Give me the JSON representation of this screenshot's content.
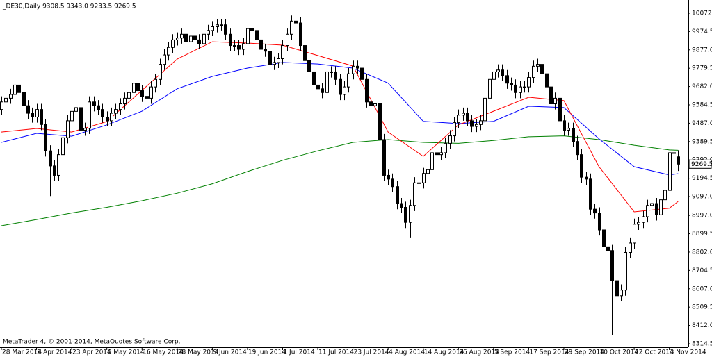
{
  "chart_data": {
    "type": "candlestick",
    "title": "_DE30,Daily  9308.5 9343.0 9233.5 9269.5",
    "footer": "MetaTrader 4, © 2001-2014, MetaQuotes Software Corp.",
    "last_price": 9269.5,
    "ylim": [
      8296,
      10142
    ],
    "yticks": [
      {
        "value": 10072,
        "label": "10072.0"
      },
      9974.5,
      {
        "value": 9877,
        "label": "9877.0"
      },
      9779.5,
      {
        "value": 9682,
        "label": "9682.0"
      },
      9584.5,
      {
        "value": 9487,
        "label": "9487.0"
      },
      9389.5,
      {
        "value": 9292,
        "label": "9292.0"
      },
      9194.5,
      {
        "value": 9097,
        "label": "9097.0"
      },
      {
        "value": 8997,
        "label": "8997.0"
      },
      8899.5,
      {
        "value": 8802,
        "label": "8802.0"
      },
      8704.5,
      {
        "value": 8607,
        "label": "8607.0"
      },
      8509.5,
      {
        "value": 8412,
        "label": "8412.0"
      },
      8314.5
    ],
    "categories": [
      "28 Mar 2014",
      null,
      null,
      null,
      null,
      null,
      null,
      null,
      "9 Apr 2014",
      null,
      null,
      null,
      null,
      null,
      null,
      null,
      "23 Apr 2014",
      null,
      null,
      null,
      null,
      null,
      null,
      null,
      "6 May 2014",
      null,
      null,
      null,
      null,
      null,
      null,
      null,
      "16 May 2014",
      null,
      null,
      null,
      null,
      null,
      null,
      null,
      "28 May 2014",
      null,
      null,
      null,
      null,
      null,
      null,
      null,
      "9 Jun 2014",
      null,
      null,
      null,
      null,
      null,
      null,
      null,
      "19 Jun 2014",
      null,
      null,
      null,
      null,
      null,
      null,
      null,
      "1 Jul 2014",
      null,
      null,
      null,
      null,
      null,
      null,
      null,
      "11 Jul 2014",
      null,
      null,
      null,
      null,
      null,
      null,
      null,
      "23 Jul 2014",
      null,
      null,
      null,
      null,
      null,
      null,
      null,
      "4 Aug 2014",
      null,
      null,
      null,
      null,
      null,
      null,
      null,
      "14 Aug 2014",
      null,
      null,
      null,
      null,
      null,
      null,
      null,
      "26 Aug 2014",
      null,
      null,
      null,
      null,
      null,
      null,
      null,
      "5 Sep 2014",
      null,
      null,
      null,
      null,
      null,
      null,
      null,
      "17 Sep 2014",
      null,
      null,
      null,
      null,
      null,
      null,
      null,
      "29 Sep 2014",
      null,
      null,
      null,
      null,
      null,
      null,
      null,
      "10 Oct 2014",
      null,
      null,
      null,
      null,
      null,
      null,
      null,
      "22 Oct 2014",
      null,
      null,
      null,
      null,
      null,
      null,
      null,
      "3 Nov 2014",
      null,
      null
    ],
    "open": [
      9560,
      9600,
      9620,
      9640,
      9690,
      9650,
      9580,
      9540,
      9520,
      9560,
      9480,
      9340,
      9260,
      9210,
      9320,
      9410,
      9500,
      9550,
      9570,
      9450,
      9460,
      9600,
      9580,
      9560,
      9520,
      9500,
      9540,
      9560,
      9590,
      9620,
      9650,
      9700,
      9660,
      9630,
      9620,
      9680,
      9720,
      9800,
      9850,
      9890,
      9930,
      9940,
      9960,
      9920,
      9950,
      9930,
      9910,
      9960,
      9980,
      10000,
      10010,
      10010,
      9960,
      9900,
      9900,
      9880,
      9910,
      9990,
      9980,
      9930,
      9880,
      9870,
      9800,
      9810,
      9830,
      9900,
      9960,
      10030,
      10020,
      9900,
      9820,
      9760,
      9690,
      9670,
      9650,
      9760,
      9760,
      9720,
      9640,
      9680,
      9750,
      9790,
      9780,
      9720,
      9600,
      9580,
      9590,
      9400,
      9210,
      9190,
      9150,
      9060,
      9040,
      8960,
      9050,
      9170,
      9170,
      9220,
      9240,
      9330,
      9320,
      9330,
      9380,
      9420,
      9490,
      9530,
      9540,
      9500,
      9470,
      9480,
      9500,
      9620,
      9720,
      9760,
      9770,
      9740,
      9700,
      9690,
      9650,
      9680,
      9680,
      9730,
      9790,
      9800,
      9750,
      9680,
      9590,
      9620,
      9500,
      9450,
      9460,
      9390,
      9320,
      9200,
      9190,
      9030,
      9010,
      8920,
      8830,
      8810,
      8650,
      8570,
      8600,
      8800,
      8850,
      8950,
      8960,
      8990,
      9050,
      9060,
      9000,
      9080,
      9130,
      9330,
      9308.5
    ],
    "high": [
      9630,
      9650,
      9670,
      9720,
      9720,
      9680,
      9610,
      9570,
      9590,
      9590,
      9510,
      9370,
      9290,
      9350,
      9440,
      9530,
      9580,
      9600,
      9600,
      9490,
      9630,
      9630,
      9610,
      9590,
      9550,
      9570,
      9590,
      9620,
      9650,
      9680,
      9730,
      9730,
      9690,
      9660,
      9710,
      9750,
      9830,
      9880,
      9920,
      9960,
      9970,
      9990,
      9990,
      9980,
      9980,
      9960,
      9990,
      10010,
      10030,
      10040,
      10040,
      10040,
      9990,
      9930,
      9930,
      9940,
      10020,
      10020,
      10010,
      9960,
      9910,
      9900,
      9840,
      9860,
      9930,
      9990,
      10060,
      10060,
      10050,
      9930,
      9850,
      9790,
      9720,
      9700,
      9790,
      9790,
      9790,
      9750,
      9710,
      9780,
      9820,
      9820,
      9810,
      9750,
      9630,
      9620,
      9620,
      9430,
      9240,
      9220,
      9180,
      9090,
      9070,
      9080,
      9200,
      9200,
      9250,
      9270,
      9360,
      9360,
      9360,
      9410,
      9450,
      9520,
      9560,
      9570,
      9570,
      9530,
      9510,
      9530,
      9650,
      9750,
      9790,
      9800,
      9800,
      9770,
      9730,
      9720,
      9710,
      9710,
      9760,
      9820,
      9830,
      9830,
      9890,
      9710,
      9650,
      9650,
      9530,
      9490,
      9490,
      9420,
      9350,
      9230,
      9220,
      9060,
      9040,
      8950,
      8860,
      8840,
      8680,
      8630,
      8830,
      8880,
      8980,
      8990,
      9020,
      9080,
      9090,
      9090,
      9110,
      9160,
      9360,
      9360,
      9343
    ],
    "low": [
      9530,
      9570,
      9590,
      9610,
      9620,
      9550,
      9510,
      9490,
      9490,
      9450,
      9310,
      9100,
      9180,
      9180,
      9290,
      9380,
      9470,
      9520,
      9420,
      9420,
      9430,
      9550,
      9530,
      9490,
      9470,
      9470,
      9510,
      9530,
      9560,
      9590,
      9620,
      9630,
      9600,
      9590,
      9590,
      9650,
      9690,
      9770,
      9820,
      9860,
      9900,
      9910,
      9890,
      9890,
      9900,
      9880,
      9880,
      9930,
      9950,
      9970,
      9980,
      9930,
      9870,
      9870,
      9850,
      9850,
      9880,
      9950,
      9900,
      9850,
      9840,
      9770,
      9770,
      9780,
      9800,
      9870,
      9930,
      9990,
      9870,
      9790,
      9730,
      9660,
      9640,
      9620,
      9620,
      9730,
      9690,
      9610,
      9610,
      9650,
      9720,
      9750,
      9690,
      9570,
      9550,
      9550,
      9370,
      9180,
      9160,
      9120,
      9030,
      9010,
      8930,
      8880,
      9020,
      9140,
      9140,
      9190,
      9210,
      9290,
      9290,
      9300,
      9350,
      9390,
      9460,
      9500,
      9470,
      9440,
      9440,
      9450,
      9470,
      9590,
      9690,
      9730,
      9710,
      9670,
      9660,
      9620,
      9620,
      9650,
      9650,
      9700,
      9760,
      9720,
      9650,
      9560,
      9560,
      9470,
      9420,
      9420,
      9360,
      9290,
      9170,
      9160,
      9000,
      8980,
      8890,
      8800,
      8780,
      8360,
      8540,
      8540,
      8570,
      8770,
      8820,
      8920,
      8930,
      8960,
      9020,
      8970,
      8970,
      9050,
      9100,
      9300,
      9233.5
    ],
    "close": [
      9600,
      9620,
      9640,
      9690,
      9650,
      9580,
      9540,
      9520,
      9560,
      9480,
      9340,
      9260,
      9210,
      9320,
      9410,
      9500,
      9550,
      9570,
      9450,
      9460,
      9600,
      9580,
      9560,
      9520,
      9500,
      9540,
      9560,
      9590,
      9620,
      9650,
      9700,
      9660,
      9630,
      9620,
      9680,
      9720,
      9800,
      9850,
      9890,
      9930,
      9940,
      9960,
      9920,
      9950,
      9930,
      9910,
      9960,
      9980,
      10000,
      10010,
      10010,
      9960,
      9900,
      9900,
      9880,
      9910,
      9990,
      9980,
      9930,
      9880,
      9870,
      9800,
      9810,
      9830,
      9900,
      9960,
      10030,
      10020,
      9900,
      9820,
      9760,
      9690,
      9670,
      9650,
      9760,
      9760,
      9720,
      9640,
      9680,
      9750,
      9790,
      9780,
      9720,
      9600,
      9580,
      9590,
      9400,
      9210,
      9190,
      9150,
      9060,
      9040,
      8960,
      9050,
      9170,
      9170,
      9220,
      9240,
      9330,
      9320,
      9330,
      9380,
      9420,
      9490,
      9530,
      9540,
      9500,
      9470,
      9480,
      9500,
      9620,
      9720,
      9760,
      9770,
      9740,
      9700,
      9690,
      9650,
      9680,
      9680,
      9730,
      9790,
      9800,
      9750,
      9680,
      9590,
      9620,
      9500,
      9450,
      9460,
      9390,
      9320,
      9200,
      9190,
      9030,
      9010,
      8920,
      8830,
      8810,
      8650,
      8570,
      8600,
      8800,
      8850,
      8950,
      8960,
      8990,
      9050,
      9060,
      9000,
      9080,
      9130,
      9330,
      9330,
      9269.5
    ],
    "up_color": "#ffffff",
    "down_color": "#000000",
    "overlays": [
      {
        "color": "#008000",
        "x": [
          0,
          8,
          16,
          24,
          32,
          40,
          48,
          56,
          64,
          72,
          80,
          88,
          96,
          104,
          112,
          120,
          128,
          136,
          144,
          152,
          154
        ],
        "values": [
          8942,
          8975,
          9010,
          9040,
          9075,
          9115,
          9165,
          9230,
          9290,
          9340,
          9385,
          9400,
          9385,
          9380,
          9395,
          9415,
          9420,
          9400,
          9370,
          9345,
          9343
        ]
      },
      {
        "color": "#0000ff",
        "x": [
          0,
          8,
          16,
          24,
          32,
          40,
          48,
          56,
          64,
          72,
          80,
          88,
          96,
          104,
          112,
          120,
          128,
          136,
          144,
          152,
          154
        ],
        "values": [
          9385,
          9433,
          9418,
          9478,
          9551,
          9670,
          9736,
          9780,
          9810,
          9802,
          9780,
          9700,
          9497,
          9485,
          9497,
          9577,
          9570,
          9404,
          9256,
          9212,
          9219
        ]
      },
      {
        "color": "#ff0000",
        "x": [
          0,
          8,
          16,
          24,
          32,
          40,
          48,
          56,
          64,
          72,
          80,
          88,
          96,
          104,
          112,
          120,
          128,
          136,
          144,
          152,
          154
        ],
        "values": [
          9440,
          9459,
          9440,
          9496,
          9662,
          9828,
          9920,
          9913,
          9902,
          9847,
          9791,
          9440,
          9311,
          9478,
          9551,
          9625,
          9607,
          9256,
          9016,
          9035,
          9071
        ]
      }
    ]
  }
}
